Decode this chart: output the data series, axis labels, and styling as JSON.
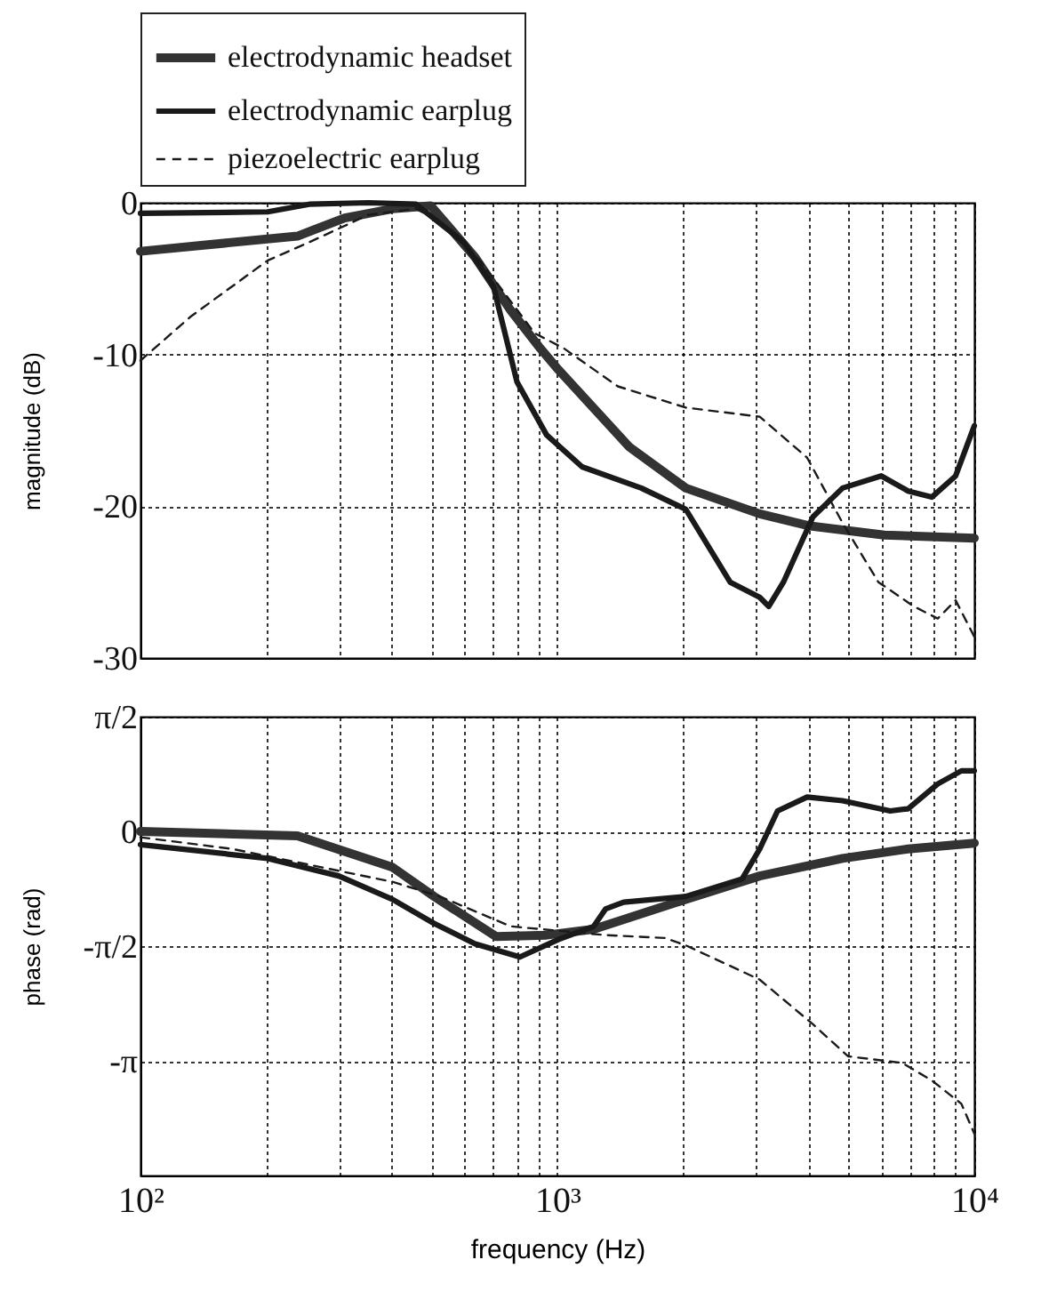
{
  "chart_data": [
    {
      "type": "line",
      "ylabel": "magnitude (dB)",
      "legend": "top",
      "grid": true,
      "log": "x",
      "tick_labels": "y",
      "xlim": [
        100,
        10000
      ],
      "ylim": [
        -30,
        0
      ],
      "yticks": [
        0,
        -10,
        -20,
        -30
      ],
      "xticks": [
        {
          "value": 100,
          "label": null
        },
        {
          "value": 200,
          "label": null
        },
        {
          "value": 300,
          "label": null
        },
        {
          "value": 400,
          "label": null
        },
        {
          "value": 500,
          "label": null
        },
        {
          "value": 600,
          "label": null
        },
        {
          "value": 700,
          "label": null
        },
        {
          "value": 800,
          "label": null
        },
        {
          "value": 900,
          "label": null
        },
        {
          "value": 1000,
          "label": null
        },
        {
          "value": 2000,
          "label": null
        },
        {
          "value": 3000,
          "label": null
        },
        {
          "value": 4000,
          "label": null
        },
        {
          "value": 5000,
          "label": null
        },
        {
          "value": 6000,
          "label": null
        },
        {
          "value": 7000,
          "label": null
        },
        {
          "value": 8000,
          "label": null
        },
        {
          "value": 9000,
          "label": null
        },
        {
          "value": 10000,
          "label": null
        }
      ],
      "series": [
        {
          "name": "electrodynamic headset",
          "color": "#333333",
          "line_style": "solid",
          "x": [
            100,
            238,
            309,
            402,
            497,
            635,
            773,
            910,
            1005,
            1489,
            2032,
            3057,
            4037,
            6080,
            10000
          ],
          "values": [
            -3.2,
            -2.2,
            -1.0,
            -0.4,
            -0.2,
            -3.6,
            -7.1,
            -9.6,
            -11.0,
            -16.1,
            -18.8,
            -20.5,
            -21.3,
            -21.9,
            -22.1
          ]
        },
        {
          "name": "electrodynamic earplug",
          "color": "#1a1a1a",
          "line_style": "solid",
          "x": [
            100,
            202,
            254,
            352,
            458,
            596,
            702,
            800,
            942,
            1146,
            1589,
            2032,
            2596,
            3057,
            3214,
            3485,
            4101,
            4830,
            5980,
            6936,
            7907,
            9020,
            10000
          ],
          "values": [
            -0.7,
            -0.6,
            -0.1,
            0,
            -0.1,
            -2.6,
            -5.5,
            -11.8,
            -15.3,
            -17.4,
            -18.8,
            -20.2,
            -25.0,
            -26.0,
            -26.6,
            -25.0,
            -20.7,
            -18.8,
            -18.0,
            -19.0,
            -19.4,
            -18.0,
            -14.7
          ]
        },
        {
          "name": "piezoelectric earplug",
          "color": "#1a1a1a",
          "line_style": "dashed",
          "x": [
            100,
            132,
            202,
            254,
            352,
            458,
            522,
            656,
            882,
            1037,
            1396,
            2032,
            3057,
            3972,
            4830,
            5887,
            7161,
            8170,
            9020,
            10000
          ],
          "values": [
            -10.4,
            -7.5,
            -3.8,
            -2.6,
            -0.8,
            -0.4,
            -1.2,
            -3.9,
            -8.6,
            -9.6,
            -12.1,
            -13.5,
            -14.1,
            -16.8,
            -21.1,
            -25.0,
            -26.6,
            -27.4,
            -26.2,
            -28.6
          ]
        }
      ]
    },
    {
      "type": "line",
      "xlabel": "frequency (Hz)",
      "ylabel": "phase (rad)",
      "grid": true,
      "log": "x",
      "xlim": [
        100,
        10000
      ],
      "ylim": [
        -4.712,
        1.571
      ],
      "yticks": [
        {
          "value": 1.571,
          "label": "π/2"
        },
        0,
        {
          "value": -1.571,
          "label": "-π/2"
        },
        {
          "value": -3.142,
          "label": "-π"
        }
      ],
      "xticks": [
        {
          "value": 100,
          "label": "10²"
        },
        {
          "value": 200,
          "label": null
        },
        {
          "value": 300,
          "label": null
        },
        {
          "value": 400,
          "label": null
        },
        {
          "value": 500,
          "label": null
        },
        {
          "value": 600,
          "label": null
        },
        {
          "value": 700,
          "label": null
        },
        {
          "value": 800,
          "label": null
        },
        {
          "value": 900,
          "label": null
        },
        {
          "value": 1000,
          "label": "10³"
        },
        {
          "value": 2000,
          "label": null
        },
        {
          "value": 3000,
          "label": null
        },
        {
          "value": 4000,
          "label": null
        },
        {
          "value": 5000,
          "label": null
        },
        {
          "value": 6000,
          "label": null
        },
        {
          "value": 7000,
          "label": null
        },
        {
          "value": 8000,
          "label": null
        },
        {
          "value": 9000,
          "label": null
        },
        {
          "value": 10000,
          "label": "10⁴"
        }
      ],
      "series": [
        {
          "color": "#333333",
          "line_style": "solid",
          "x": [
            100,
            238,
            402,
            506,
            713,
            942,
            1222,
            2032,
            3057,
            4830,
            6936,
            10000
          ],
          "values": [
            0,
            -0.06,
            -0.49,
            -0.89,
            -1.44,
            -1.42,
            -1.34,
            -0.93,
            -0.61,
            -0.37,
            -0.24,
            -0.16
          ]
        },
        {
          "color": "#1a1a1a",
          "line_style": "solid",
          "x": [
            100,
            202,
            299,
            402,
            506,
            635,
            813,
            1005,
            1222,
            1306,
            1442,
            2032,
            2774,
            3057,
            3373,
            3972,
            4830,
            6285,
            6936,
            8170,
            9310,
            10000
          ],
          "values": [
            -0.18,
            -0.37,
            -0.61,
            -0.93,
            -1.26,
            -1.54,
            -1.72,
            -1.48,
            -1.3,
            -1.06,
            -0.97,
            -0.89,
            -0.65,
            -0.24,
            0.28,
            0.47,
            0.42,
            0.28,
            0.31,
            0.65,
            0.83,
            0.83
          ]
        },
        {
          "color": "#1a1a1a",
          "line_style": "dashed",
          "x": [
            100,
            166,
            402,
            522,
            773,
            1306,
            1811,
            2032,
            3057,
            4101,
            4980,
            6714,
            7907,
            9310,
            10000
          ],
          "values": [
            -0.08,
            -0.24,
            -0.69,
            -0.89,
            -1.3,
            -1.42,
            -1.46,
            -1.56,
            -2.03,
            -2.64,
            -3.08,
            -3.17,
            -3.41,
            -3.73,
            -4.14
          ]
        }
      ]
    }
  ]
}
